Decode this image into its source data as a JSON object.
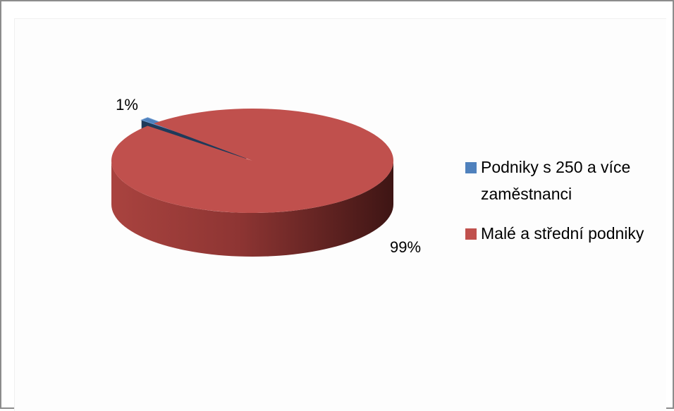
{
  "chart_data": {
    "type": "pie",
    "categories": [
      "Podniky s 250 a více zaměstnanci",
      "Malé a střední podniky"
    ],
    "values": [
      1,
      99
    ],
    "value_labels": [
      "1%",
      "99%"
    ],
    "colors": [
      "#4f81bd",
      "#c0504d"
    ],
    "legend": "right"
  }
}
